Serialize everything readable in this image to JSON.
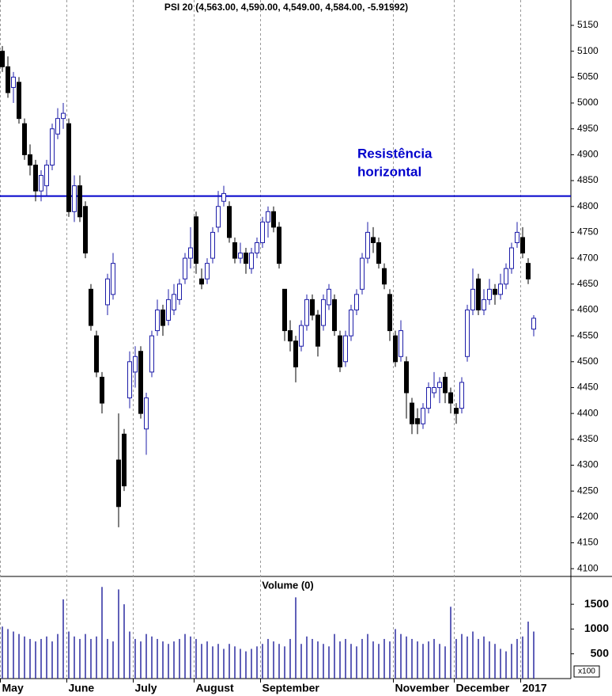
{
  "chart_data": {
    "type": "candlestick",
    "title": "PSI 20 (4,563.00, 4,590.00, 4,549.00, 4,584.00, -5.91992)",
    "up_color": "#1c1ca8",
    "down_color": "#000000",
    "ylim": [
      4085,
      5199
    ],
    "yticks": [
      4100,
      4150,
      4200,
      4250,
      4300,
      4350,
      4400,
      4450,
      4500,
      4550,
      4600,
      4650,
      4700,
      4750,
      4800,
      4850,
      4900,
      4950,
      5000,
      5050,
      5100,
      5150
    ],
    "hline": {
      "value": 4820,
      "color": "#0000cc",
      "label": [
        "Resistência",
        "horizontal"
      ]
    },
    "categories": [
      "May",
      null,
      null,
      null,
      null,
      null,
      null,
      null,
      null,
      null,
      null,
      null,
      "June",
      null,
      null,
      null,
      null,
      null,
      null,
      null,
      null,
      null,
      null,
      null,
      "July",
      null,
      null,
      null,
      null,
      null,
      null,
      null,
      null,
      null,
      null,
      "August",
      null,
      null,
      null,
      null,
      null,
      null,
      null,
      null,
      null,
      null,
      null,
      "September",
      null,
      null,
      null,
      null,
      null,
      null,
      null,
      null,
      null,
      null,
      null,
      null,
      null,
      null,
      null,
      null,
      null,
      null,
      null,
      null,
      null,
      null,
      null,
      "November",
      null,
      null,
      null,
      null,
      null,
      null,
      null,
      null,
      null,
      null,
      "December",
      null,
      null,
      null,
      null,
      null,
      null,
      null,
      null,
      null,
      null,
      null,
      "2017",
      null,
      null,
      null
    ],
    "ohlc": [
      [
        5100,
        5110,
        5060,
        5070
      ],
      [
        5070,
        5090,
        5010,
        5020
      ],
      [
        5030,
        5060,
        5000,
        5050
      ],
      [
        5040,
        5050,
        4960,
        4970
      ],
      [
        4960,
        4970,
        4890,
        4900
      ],
      [
        4900,
        4920,
        4860,
        4880
      ],
      [
        4880,
        4890,
        4810,
        4830
      ],
      [
        4830,
        4870,
        4810,
        4860
      ],
      [
        4840,
        4890,
        4820,
        4880
      ],
      [
        4880,
        4960,
        4870,
        4950
      ],
      [
        4940,
        4990,
        4930,
        4970
      ],
      [
        4970,
        5000,
        4950,
        4980
      ],
      [
        4960,
        4970,
        4780,
        4790
      ],
      [
        4790,
        4860,
        4770,
        4840
      ],
      [
        4840,
        4860,
        4770,
        4780
      ],
      [
        4800,
        4810,
        4700,
        4710
      ],
      [
        4640,
        4650,
        4560,
        4570
      ],
      [
        4550,
        4560,
        4470,
        4480
      ],
      [
        4470,
        4480,
        4400,
        4420
      ],
      [
        4610,
        4670,
        4590,
        4660
      ],
      [
        4630,
        4710,
        4620,
        4690
      ],
      [
        4310,
        4400,
        4180,
        4220
      ],
      [
        4360,
        4370,
        4250,
        4260
      ],
      [
        4430,
        4520,
        4410,
        4500
      ],
      [
        4480,
        4530,
        4450,
        4510
      ],
      [
        4520,
        4530,
        4390,
        4400
      ],
      [
        4370,
        4440,
        4320,
        4430
      ],
      [
        4480,
        4560,
        4470,
        4550
      ],
      [
        4560,
        4620,
        4550,
        4600
      ],
      [
        4600,
        4610,
        4550,
        4570
      ],
      [
        4580,
        4640,
        4570,
        4620
      ],
      [
        4600,
        4650,
        4590,
        4630
      ],
      [
        4620,
        4660,
        4610,
        4650
      ],
      [
        4660,
        4710,
        4650,
        4700
      ],
      [
        4700,
        4760,
        4680,
        4720
      ],
      [
        4780,
        4790,
        4670,
        4690
      ],
      [
        4660,
        4680,
        4640,
        4650
      ],
      [
        4660,
        4700,
        4650,
        4690
      ],
      [
        4700,
        4760,
        4690,
        4750
      ],
      [
        4760,
        4830,
        4750,
        4800
      ],
      [
        4810,
        4840,
        4800,
        4825
      ],
      [
        4800,
        4810,
        4730,
        4740
      ],
      [
        4730,
        4740,
        4690,
        4700
      ],
      [
        4700,
        4730,
        4690,
        4710
      ],
      [
        4710,
        4720,
        4670,
        4690
      ],
      [
        4680,
        4720,
        4670,
        4710
      ],
      [
        4710,
        4740,
        4700,
        4730
      ],
      [
        4730,
        4780,
        4720,
        4770
      ],
      [
        4770,
        4800,
        4740,
        4790
      ],
      [
        4790,
        4800,
        4750,
        4760
      ],
      [
        4760,
        4770,
        4680,
        4690
      ],
      [
        4640,
        4640,
        4540,
        4560
      ],
      [
        4560,
        4580,
        4520,
        4540
      ],
      [
        4540,
        4550,
        4460,
        4490
      ],
      [
        4530,
        4580,
        4520,
        4570
      ],
      [
        4570,
        4630,
        4560,
        4620
      ],
      [
        4620,
        4630,
        4580,
        4590
      ],
      [
        4590,
        4600,
        4510,
        4530
      ],
      [
        4570,
        4630,
        4560,
        4620
      ],
      [
        4610,
        4650,
        4600,
        4640
      ],
      [
        4620,
        4630,
        4550,
        4560
      ],
      [
        4550,
        4560,
        4480,
        4490
      ],
      [
        4500,
        4560,
        4490,
        4550
      ],
      [
        4550,
        4610,
        4540,
        4600
      ],
      [
        4600,
        4640,
        4590,
        4630
      ],
      [
        4640,
        4710,
        4630,
        4700
      ],
      [
        4700,
        4770,
        4690,
        4750
      ],
      [
        4740,
        4760,
        4710,
        4730
      ],
      [
        4730,
        4740,
        4680,
        4690
      ],
      [
        4680,
        4690,
        4640,
        4650
      ],
      [
        4630,
        4640,
        4540,
        4560
      ],
      [
        4550,
        4560,
        4490,
        4500
      ],
      [
        4510,
        4580,
        4500,
        4560
      ],
      [
        4500,
        4510,
        4390,
        4440
      ],
      [
        4420,
        4430,
        4360,
        4380
      ],
      [
        4390,
        4410,
        4360,
        4380
      ],
      [
        4380,
        4420,
        4370,
        4410
      ],
      [
        4410,
        4460,
        4400,
        4450
      ],
      [
        4440,
        4480,
        4430,
        4450
      ],
      [
        4450,
        4470,
        4420,
        4460
      ],
      [
        4470,
        4480,
        4420,
        4440
      ],
      [
        4440,
        4450,
        4400,
        4420
      ],
      [
        4410,
        4420,
        4380,
        4400
      ],
      [
        4410,
        4470,
        4400,
        4460
      ],
      [
        4510,
        4610,
        4500,
        4600
      ],
      [
        4600,
        4680,
        4590,
        4640
      ],
      [
        4660,
        4670,
        4590,
        4600
      ],
      [
        4600,
        4640,
        4590,
        4620
      ],
      [
        4620,
        4660,
        4610,
        4640
      ],
      [
        4640,
        4650,
        4610,
        4630
      ],
      [
        4630,
        4670,
        4620,
        4650
      ],
      [
        4650,
        4690,
        4640,
        4680
      ],
      [
        4680,
        4730,
        4670,
        4720
      ],
      [
        4730,
        4770,
        4720,
        4750
      ],
      [
        4740,
        4760,
        4700,
        4710
      ],
      [
        4690,
        4700,
        4650,
        4660
      ],
      [
        4563,
        4590,
        4549,
        4584
      ]
    ],
    "volume": {
      "type": "bar",
      "title": "Volume (0)",
      "unit_label": "x100",
      "color": "#2a2aa0",
      "ylim": [
        0,
        2030
      ],
      "yticks": [
        500,
        1000,
        1500
      ],
      "values": [
        1050,
        1000,
        950,
        900,
        850,
        800,
        750,
        800,
        850,
        750,
        900,
        1600,
        950,
        850,
        800,
        900,
        800,
        850,
        1850,
        800,
        750,
        1800,
        1500,
        950,
        800,
        750,
        900,
        850,
        800,
        750,
        700,
        750,
        800,
        900,
        850,
        800,
        700,
        750,
        650,
        700,
        600,
        700,
        650,
        600,
        550,
        600,
        650,
        700,
        800,
        750,
        700,
        650,
        800,
        1640,
        700,
        850,
        800,
        750,
        700,
        650,
        900,
        750,
        800,
        700,
        650,
        800,
        900,
        750,
        700,
        800,
        750,
        1000,
        900,
        850,
        800,
        750,
        700,
        750,
        800,
        700,
        650,
        1450,
        800,
        900,
        850,
        950,
        800,
        850,
        750,
        700,
        600,
        550,
        700,
        800,
        850,
        1150,
        950
      ]
    }
  }
}
